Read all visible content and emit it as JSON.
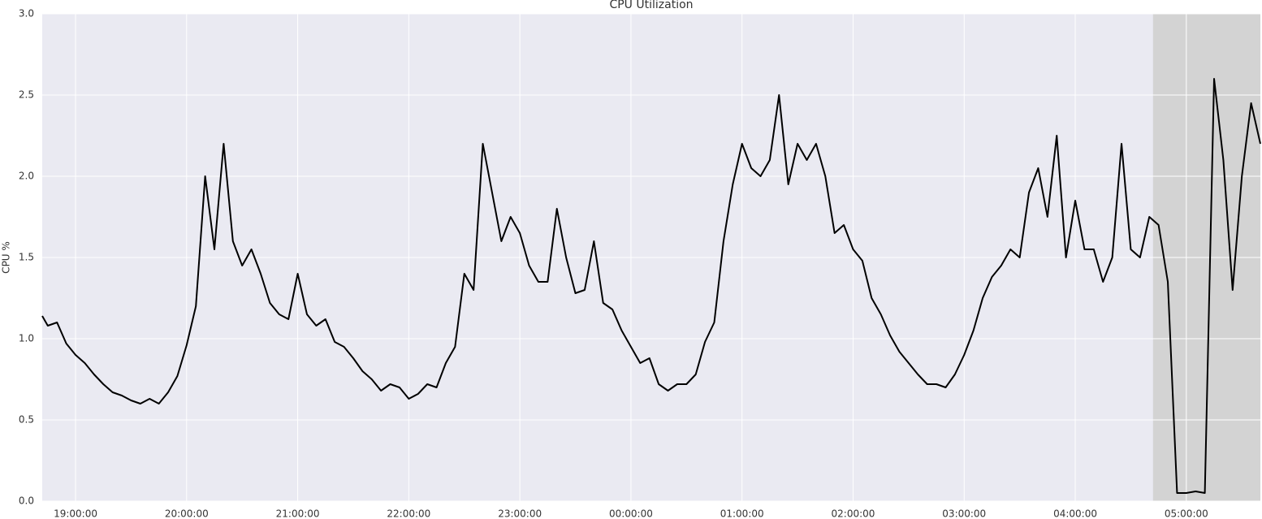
{
  "chart_data": {
    "type": "line",
    "title": "CPU Utilization",
    "ylabel": "CPU %",
    "xlim": [
      "18:42:00",
      "05:40:00"
    ],
    "xticks": [
      "19:00:00",
      "20:00:00",
      "21:00:00",
      "22:00:00",
      "23:00:00",
      "00:00:00",
      "01:00:00",
      "02:00:00",
      "03:00:00",
      "04:00:00",
      "05:00:00"
    ],
    "ylim": [
      0,
      3
    ],
    "yticks": [
      {
        "value": 0,
        "label": "0.0"
      },
      0.5,
      {
        "value": 1,
        "label": "1.0"
      },
      1.5,
      {
        "value": 2,
        "label": "2.0"
      },
      2.5,
      {
        "value": 3,
        "label": "3.0"
      }
    ],
    "grid": true,
    "background": "#eaeaf2",
    "shaded_span": [
      "04:42:00",
      "05:40:00"
    ],
    "shaded_color": "#d3d3d3",
    "x": [
      "18:42:00",
      "18:45:00",
      "18:50:00",
      "18:55:00",
      "19:00:00",
      "19:05:00",
      "19:10:00",
      "19:15:00",
      "19:20:00",
      "19:25:00",
      "19:30:00",
      "19:35:00",
      "19:40:00",
      "19:45:00",
      "19:50:00",
      "19:55:00",
      "20:00:00",
      "20:05:00",
      "20:10:00",
      "20:15:00",
      "20:20:00",
      "20:25:00",
      "20:30:00",
      "20:35:00",
      "20:40:00",
      "20:45:00",
      "20:50:00",
      "20:55:00",
      "21:00:00",
      "21:05:00",
      "21:10:00",
      "21:15:00",
      "21:20:00",
      "21:25:00",
      "21:30:00",
      "21:35:00",
      "21:40:00",
      "21:45:00",
      "21:50:00",
      "21:55:00",
      "22:00:00",
      "22:05:00",
      "22:10:00",
      "22:15:00",
      "22:20:00",
      "22:25:00",
      "22:30:00",
      "22:35:00",
      "22:40:00",
      "22:45:00",
      "22:50:00",
      "22:55:00",
      "23:00:00",
      "23:05:00",
      "23:10:00",
      "23:15:00",
      "23:20:00",
      "23:25:00",
      "23:30:00",
      "23:35:00",
      "23:40:00",
      "23:45:00",
      "23:50:00",
      "23:55:00",
      "00:00:00",
      "00:05:00",
      "00:10:00",
      "00:15:00",
      "00:20:00",
      "00:25:00",
      "00:30:00",
      "00:35:00",
      "00:40:00",
      "00:45:00",
      "00:50:00",
      "00:55:00",
      "01:00:00",
      "01:05:00",
      "01:10:00",
      "01:15:00",
      "01:20:00",
      "01:25:00",
      "01:30:00",
      "01:35:00",
      "01:40:00",
      "01:45:00",
      "01:50:00",
      "01:55:00",
      "02:00:00",
      "02:05:00",
      "02:10:00",
      "02:15:00",
      "02:20:00",
      "02:25:00",
      "02:30:00",
      "02:35:00",
      "02:40:00",
      "02:45:00",
      "02:50:00",
      "02:55:00",
      "03:00:00",
      "03:05:00",
      "03:10:00",
      "03:15:00",
      "03:20:00",
      "03:25:00",
      "03:30:00",
      "03:35:00",
      "03:40:00",
      "03:45:00",
      "03:50:00",
      "03:55:00",
      "04:00:00",
      "04:05:00",
      "04:10:00",
      "04:15:00",
      "04:20:00",
      "04:25:00",
      "04:30:00",
      "04:35:00",
      "04:40:00",
      "04:45:00",
      "04:50:00",
      "04:55:00",
      "05:00:00",
      "05:05:00",
      "05:10:00",
      "05:15:00",
      "05:20:00",
      "05:25:00",
      "05:30:00",
      "05:35:00",
      "05:40:00"
    ],
    "series": [
      {
        "color": "#000000",
        "values": [
          1.14,
          1.08,
          1.1,
          0.97,
          0.9,
          0.85,
          0.78,
          0.72,
          0.67,
          0.65,
          0.62,
          0.6,
          0.63,
          0.6,
          0.67,
          0.77,
          0.96,
          1.2,
          2.0,
          1.55,
          2.2,
          1.6,
          1.45,
          1.55,
          1.4,
          1.22,
          1.15,
          1.12,
          1.4,
          1.15,
          1.08,
          1.12,
          0.98,
          0.95,
          0.88,
          0.8,
          0.75,
          0.68,
          0.72,
          0.7,
          0.63,
          0.66,
          0.72,
          0.7,
          0.85,
          0.95,
          1.4,
          1.3,
          2.2,
          1.9,
          1.6,
          1.75,
          1.65,
          1.45,
          1.35,
          1.35,
          1.8,
          1.5,
          1.28,
          1.3,
          1.6,
          1.22,
          1.18,
          1.05,
          0.95,
          0.85,
          0.88,
          0.72,
          0.68,
          0.72,
          0.72,
          0.78,
          0.98,
          1.1,
          1.6,
          1.95,
          2.2,
          2.05,
          2.0,
          2.1,
          2.5,
          1.95,
          2.2,
          2.1,
          2.2,
          2.0,
          1.65,
          1.7,
          1.55,
          1.48,
          1.25,
          1.15,
          1.02,
          0.92,
          0.85,
          0.78,
          0.72,
          0.72,
          0.7,
          0.78,
          0.9,
          1.05,
          1.25,
          1.38,
          1.45,
          1.55,
          1.5,
          1.9,
          2.05,
          1.75,
          2.25,
          1.5,
          1.85,
          1.55,
          1.55,
          1.35,
          1.5,
          2.2,
          1.55,
          1.5,
          1.75,
          1.7,
          1.35,
          0.05,
          0.05,
          0.06,
          0.05,
          2.6,
          2.1,
          1.3,
          2.0,
          2.45,
          2.2
        ]
      }
    ]
  }
}
